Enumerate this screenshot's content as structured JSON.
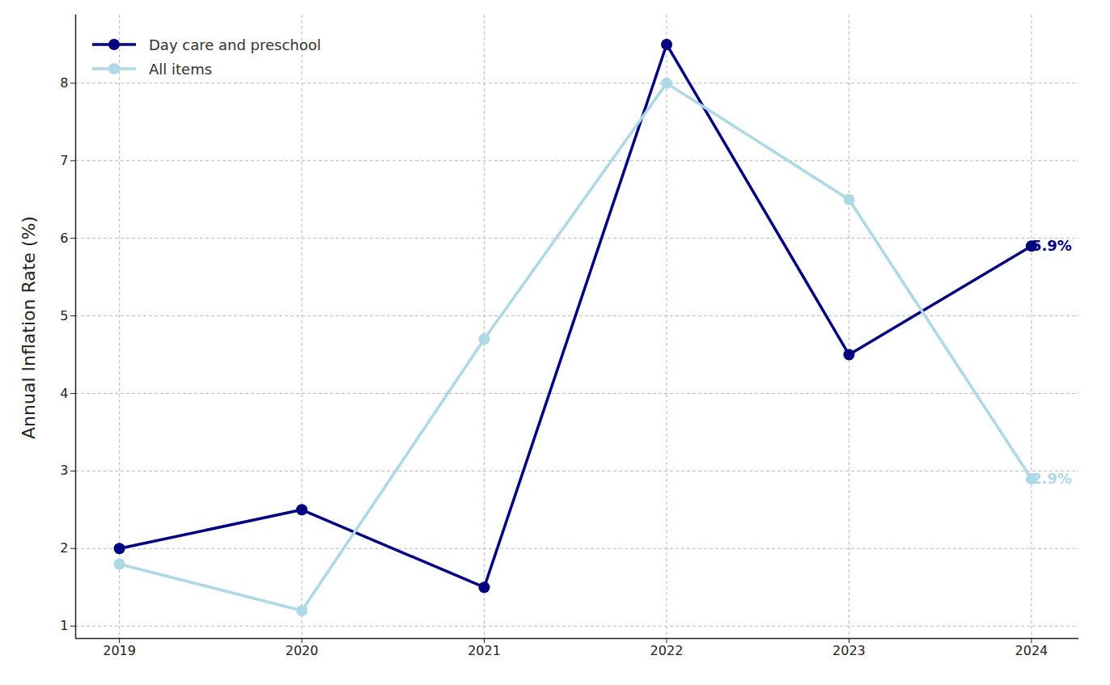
{
  "chart_data": {
    "type": "line",
    "y_label": "Annual Inflation Rate (%)",
    "x": [
      2019,
      2020,
      2021,
      2022,
      2023,
      2024
    ],
    "series": [
      {
        "name": "Day care and preschool",
        "color": "#000080",
        "marker": "circle",
        "line_style": "solid",
        "values": [
          2.0,
          2.5,
          1.5,
          8.5,
          4.5,
          5.9
        ],
        "value_labels": [
          null,
          null,
          null,
          null,
          null,
          "5.9%"
        ]
      },
      {
        "name": "All items",
        "color": "#add8e6",
        "marker": "circle",
        "line_style": "solid",
        "values": [
          1.8,
          1.2,
          4.7,
          8.0,
          6.5,
          2.9
        ],
        "value_labels": [
          null,
          null,
          null,
          null,
          null,
          "2.9%"
        ]
      }
    ],
    "xlim": [
      2018.76,
      2024.26
    ],
    "xticks": [
      2019,
      2020,
      2021,
      2022,
      2023,
      2024
    ],
    "ylim": [
      0.84,
      8.88
    ],
    "yticks": [
      1,
      2,
      3,
      4,
      5,
      6,
      7,
      8
    ],
    "grid": true,
    "legend": "upper left",
    "data_labels": true
  }
}
